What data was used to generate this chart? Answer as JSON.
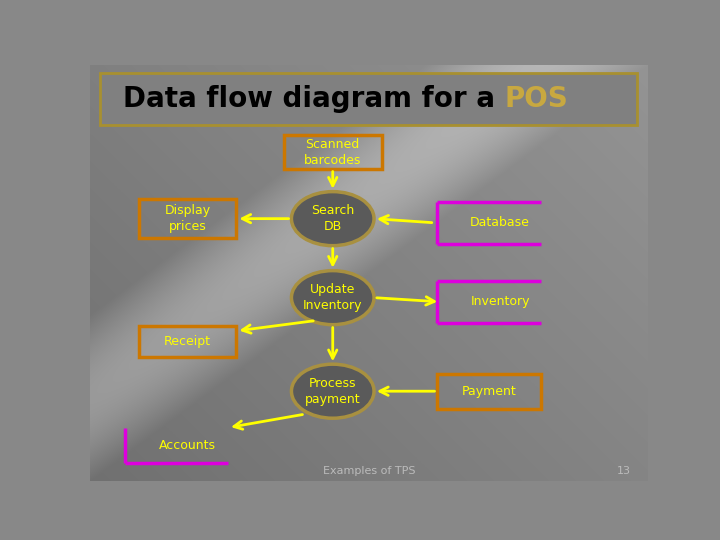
{
  "title_black": "Data flow diagram for a ",
  "title_gold": "POS",
  "bg_color_left": "#909090",
  "bg_color_right": "#a0a0a0",
  "title_border_color": "#a89030",
  "title_bg": "#909090",
  "orange_box_color": "#cc7700",
  "magenta_bracket_color": "#dd00dd",
  "yellow_arrow_color": "#ffff00",
  "ellipse_border_color": "#a89040",
  "ellipse_fill": "#606060",
  "footer_text": "Examples of TPS",
  "footer_number": "13"
}
